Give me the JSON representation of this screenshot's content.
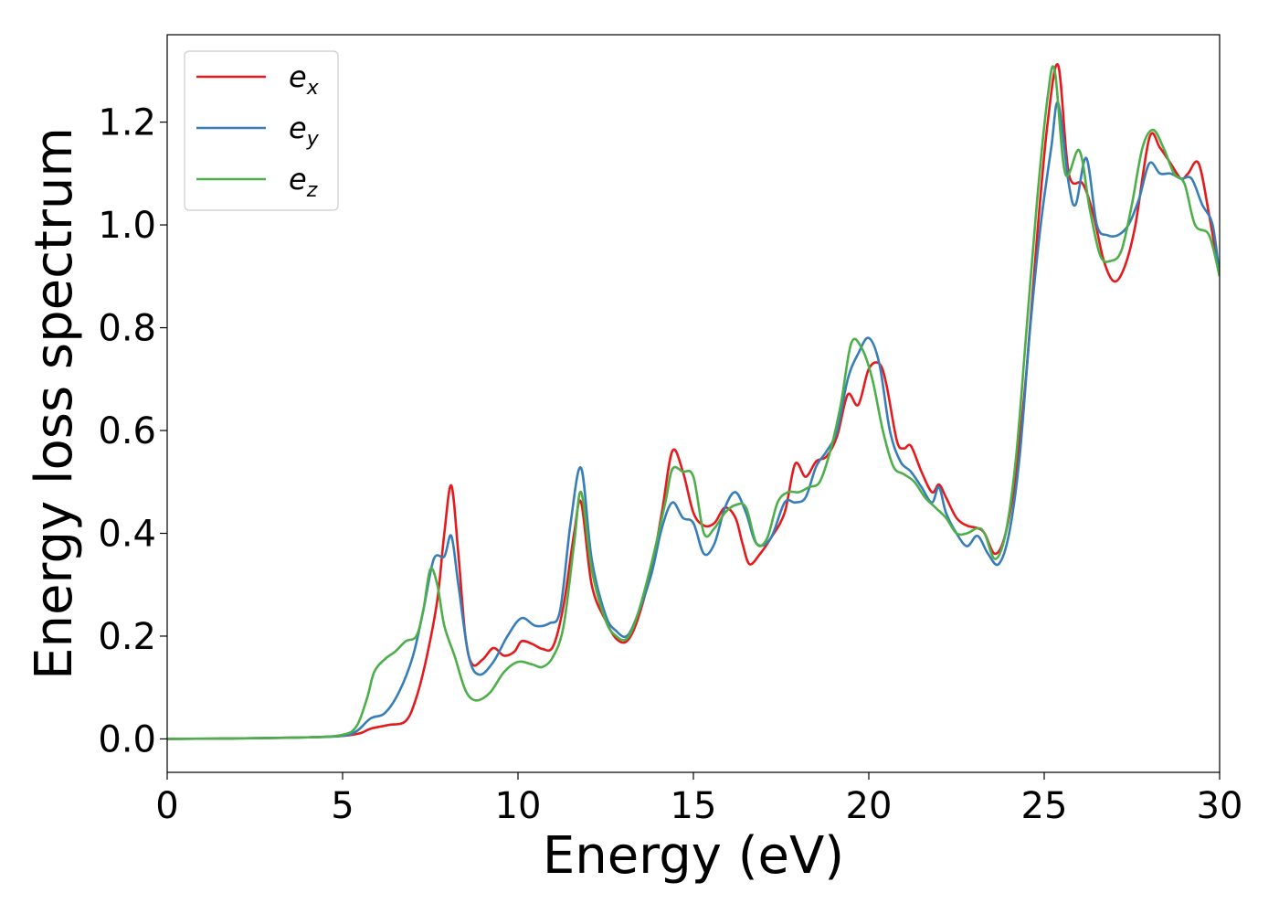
{
  "chart_data": {
    "type": "line",
    "xlabel": "Energy (eV)",
    "ylabel": "Energy loss spectrum",
    "xlim": [
      0,
      30
    ],
    "ylim": [
      -0.065,
      1.37
    ],
    "xticks": [
      0,
      5,
      10,
      15,
      20,
      25,
      30
    ],
    "xtick_labels": [
      "0",
      "5",
      "10",
      "15",
      "20",
      "25",
      "30"
    ],
    "yticks": [
      0.0,
      0.2,
      0.4,
      0.6,
      0.8,
      1.0,
      1.2
    ],
    "ytick_labels": [
      "0.0",
      "0.2",
      "0.4",
      "0.6",
      "0.8",
      "1.0",
      "1.2"
    ],
    "grid": false,
    "legend_position": "top-left",
    "legend": [
      {
        "base": "e",
        "sub": "x"
      },
      {
        "base": "e",
        "sub": "y"
      },
      {
        "base": "e",
        "sub": "z"
      }
    ],
    "series": [
      {
        "name": "e_x",
        "color": "#e41a1c",
        "points": [
          [
            0,
            0
          ],
          [
            2,
            0.001
          ],
          [
            4,
            0.003
          ],
          [
            5,
            0.006
          ],
          [
            5.5,
            0.011
          ],
          [
            5.8,
            0.02
          ],
          [
            6.3,
            0.027
          ],
          [
            6.8,
            0.035
          ],
          [
            7.1,
            0.08
          ],
          [
            7.4,
            0.16
          ],
          [
            7.7,
            0.27
          ],
          [
            7.9,
            0.4
          ],
          [
            8.1,
            0.493
          ],
          [
            8.3,
            0.36
          ],
          [
            8.5,
            0.2
          ],
          [
            8.7,
            0.145
          ],
          [
            9.0,
            0.155
          ],
          [
            9.3,
            0.177
          ],
          [
            9.6,
            0.162
          ],
          [
            9.9,
            0.17
          ],
          [
            10.1,
            0.19
          ],
          [
            10.4,
            0.185
          ],
          [
            10.7,
            0.175
          ],
          [
            11.0,
            0.18
          ],
          [
            11.3,
            0.26
          ],
          [
            11.6,
            0.4
          ],
          [
            11.8,
            0.46
          ],
          [
            12.1,
            0.3
          ],
          [
            12.5,
            0.23
          ],
          [
            12.8,
            0.195
          ],
          [
            13.1,
            0.19
          ],
          [
            13.4,
            0.23
          ],
          [
            13.8,
            0.33
          ],
          [
            14.1,
            0.44
          ],
          [
            14.4,
            0.56
          ],
          [
            14.7,
            0.52
          ],
          [
            15.0,
            0.44
          ],
          [
            15.3,
            0.415
          ],
          [
            15.6,
            0.42
          ],
          [
            15.9,
            0.45
          ],
          [
            16.2,
            0.43
          ],
          [
            16.4,
            0.38
          ],
          [
            16.6,
            0.34
          ],
          [
            16.9,
            0.36
          ],
          [
            17.2,
            0.39
          ],
          [
            17.6,
            0.44
          ],
          [
            17.9,
            0.535
          ],
          [
            18.2,
            0.51
          ],
          [
            18.5,
            0.54
          ],
          [
            18.8,
            0.55
          ],
          [
            19.1,
            0.59
          ],
          [
            19.4,
            0.67
          ],
          [
            19.7,
            0.65
          ],
          [
            20.0,
            0.72
          ],
          [
            20.3,
            0.73
          ],
          [
            20.5,
            0.69
          ],
          [
            20.8,
            0.58
          ],
          [
            21.0,
            0.565
          ],
          [
            21.2,
            0.57
          ],
          [
            21.5,
            0.52
          ],
          [
            21.8,
            0.48
          ],
          [
            22.0,
            0.495
          ],
          [
            22.2,
            0.47
          ],
          [
            22.5,
            0.43
          ],
          [
            22.8,
            0.415
          ],
          [
            23.1,
            0.41
          ],
          [
            23.3,
            0.4
          ],
          [
            23.6,
            0.36
          ],
          [
            23.9,
            0.4
          ],
          [
            24.2,
            0.52
          ],
          [
            24.5,
            0.72
          ],
          [
            24.8,
            0.98
          ],
          [
            25.1,
            1.2
          ],
          [
            25.4,
            1.31
          ],
          [
            25.7,
            1.1
          ],
          [
            26.1,
            1.08
          ],
          [
            26.4,
            1.02
          ],
          [
            26.7,
            0.93
          ],
          [
            27.0,
            0.89
          ],
          [
            27.3,
            0.92
          ],
          [
            27.6,
            1.0
          ],
          [
            28.0,
            1.17
          ],
          [
            28.3,
            1.15
          ],
          [
            28.6,
            1.12
          ],
          [
            28.9,
            1.09
          ],
          [
            29.1,
            1.1
          ],
          [
            29.4,
            1.12
          ],
          [
            29.7,
            1.02
          ],
          [
            30,
            0.9
          ]
        ]
      },
      {
        "name": "e_y",
        "color": "#377eb8",
        "points": [
          [
            0,
            0
          ],
          [
            2,
            0.001
          ],
          [
            4,
            0.003
          ],
          [
            5,
            0.006
          ],
          [
            5.4,
            0.015
          ],
          [
            5.8,
            0.04
          ],
          [
            6.2,
            0.05
          ],
          [
            6.6,
            0.09
          ],
          [
            7.0,
            0.16
          ],
          [
            7.3,
            0.25
          ],
          [
            7.6,
            0.35
          ],
          [
            7.9,
            0.355
          ],
          [
            8.1,
            0.395
          ],
          [
            8.3,
            0.3
          ],
          [
            8.6,
            0.16
          ],
          [
            8.9,
            0.125
          ],
          [
            9.3,
            0.15
          ],
          [
            9.7,
            0.2
          ],
          [
            10.1,
            0.235
          ],
          [
            10.5,
            0.22
          ],
          [
            10.9,
            0.225
          ],
          [
            11.2,
            0.25
          ],
          [
            11.5,
            0.42
          ],
          [
            11.8,
            0.527
          ],
          [
            12.1,
            0.35
          ],
          [
            12.5,
            0.24
          ],
          [
            12.8,
            0.21
          ],
          [
            13.1,
            0.2
          ],
          [
            13.4,
            0.24
          ],
          [
            13.8,
            0.32
          ],
          [
            14.1,
            0.41
          ],
          [
            14.4,
            0.46
          ],
          [
            14.7,
            0.43
          ],
          [
            15.0,
            0.42
          ],
          [
            15.3,
            0.36
          ],
          [
            15.6,
            0.38
          ],
          [
            15.9,
            0.45
          ],
          [
            16.2,
            0.48
          ],
          [
            16.5,
            0.44
          ],
          [
            16.8,
            0.38
          ],
          [
            17.2,
            0.39
          ],
          [
            17.6,
            0.46
          ],
          [
            17.9,
            0.46
          ],
          [
            18.2,
            0.47
          ],
          [
            18.5,
            0.53
          ],
          [
            18.8,
            0.56
          ],
          [
            19.1,
            0.6
          ],
          [
            19.4,
            0.7
          ],
          [
            19.7,
            0.75
          ],
          [
            20.0,
            0.78
          ],
          [
            20.3,
            0.73
          ],
          [
            20.6,
            0.6
          ],
          [
            20.9,
            0.54
          ],
          [
            21.2,
            0.52
          ],
          [
            21.5,
            0.49
          ],
          [
            21.8,
            0.46
          ],
          [
            22.0,
            0.49
          ],
          [
            22.2,
            0.44
          ],
          [
            22.5,
            0.4
          ],
          [
            22.8,
            0.375
          ],
          [
            23.1,
            0.395
          ],
          [
            23.4,
            0.36
          ],
          [
            23.7,
            0.34
          ],
          [
            24.0,
            0.4
          ],
          [
            24.3,
            0.55
          ],
          [
            24.6,
            0.8
          ],
          [
            24.9,
            1.0
          ],
          [
            25.2,
            1.15
          ],
          [
            25.4,
            1.237
          ],
          [
            25.7,
            1.08
          ],
          [
            25.9,
            1.04
          ],
          [
            26.2,
            1.13
          ],
          [
            26.5,
            1.0
          ],
          [
            26.8,
            0.98
          ],
          [
            27.1,
            0.98
          ],
          [
            27.4,
            1.0
          ],
          [
            27.7,
            1.05
          ],
          [
            28.0,
            1.12
          ],
          [
            28.3,
            1.1
          ],
          [
            28.6,
            1.1
          ],
          [
            28.9,
            1.09
          ],
          [
            29.2,
            1.09
          ],
          [
            29.5,
            1.04
          ],
          [
            29.8,
            1.0
          ],
          [
            30,
            0.9
          ]
        ]
      },
      {
        "name": "e_z",
        "color": "#4daf4a",
        "points": [
          [
            0,
            0
          ],
          [
            2,
            0.001
          ],
          [
            4,
            0.003
          ],
          [
            5,
            0.008
          ],
          [
            5.4,
            0.025
          ],
          [
            5.7,
            0.08
          ],
          [
            5.9,
            0.13
          ],
          [
            6.2,
            0.155
          ],
          [
            6.5,
            0.17
          ],
          [
            6.8,
            0.19
          ],
          [
            7.1,
            0.2
          ],
          [
            7.3,
            0.25
          ],
          [
            7.5,
            0.33
          ],
          [
            7.7,
            0.3
          ],
          [
            7.9,
            0.22
          ],
          [
            8.2,
            0.16
          ],
          [
            8.5,
            0.095
          ],
          [
            8.8,
            0.075
          ],
          [
            9.2,
            0.09
          ],
          [
            9.6,
            0.13
          ],
          [
            10.0,
            0.15
          ],
          [
            10.4,
            0.145
          ],
          [
            10.7,
            0.14
          ],
          [
            11.0,
            0.16
          ],
          [
            11.3,
            0.22
          ],
          [
            11.6,
            0.38
          ],
          [
            11.8,
            0.48
          ],
          [
            12.1,
            0.33
          ],
          [
            12.5,
            0.23
          ],
          [
            12.8,
            0.2
          ],
          [
            13.1,
            0.195
          ],
          [
            13.4,
            0.24
          ],
          [
            13.8,
            0.34
          ],
          [
            14.2,
            0.46
          ],
          [
            14.4,
            0.525
          ],
          [
            14.7,
            0.52
          ],
          [
            15.0,
            0.51
          ],
          [
            15.3,
            0.4
          ],
          [
            15.6,
            0.41
          ],
          [
            15.9,
            0.44
          ],
          [
            16.2,
            0.455
          ],
          [
            16.5,
            0.45
          ],
          [
            16.8,
            0.38
          ],
          [
            17.1,
            0.39
          ],
          [
            17.4,
            0.46
          ],
          [
            17.7,
            0.48
          ],
          [
            18.0,
            0.48
          ],
          [
            18.3,
            0.49
          ],
          [
            18.6,
            0.5
          ],
          [
            18.9,
            0.56
          ],
          [
            19.2,
            0.65
          ],
          [
            19.5,
            0.77
          ],
          [
            19.8,
            0.76
          ],
          [
            20.1,
            0.7
          ],
          [
            20.4,
            0.6
          ],
          [
            20.7,
            0.53
          ],
          [
            21.0,
            0.515
          ],
          [
            21.3,
            0.5
          ],
          [
            21.6,
            0.47
          ],
          [
            21.9,
            0.45
          ],
          [
            22.2,
            0.43
          ],
          [
            22.5,
            0.4
          ],
          [
            22.8,
            0.4
          ],
          [
            23.1,
            0.41
          ],
          [
            23.3,
            0.4
          ],
          [
            23.6,
            0.35
          ],
          [
            23.9,
            0.4
          ],
          [
            24.2,
            0.55
          ],
          [
            24.5,
            0.8
          ],
          [
            24.8,
            1.05
          ],
          [
            25.1,
            1.25
          ],
          [
            25.3,
            1.3
          ],
          [
            25.6,
            1.1
          ],
          [
            26.0,
            1.145
          ],
          [
            26.3,
            1.03
          ],
          [
            26.6,
            0.94
          ],
          [
            26.9,
            0.93
          ],
          [
            27.2,
            0.95
          ],
          [
            27.5,
            1.04
          ],
          [
            27.8,
            1.15
          ],
          [
            28.1,
            1.185
          ],
          [
            28.4,
            1.15
          ],
          [
            28.7,
            1.1
          ],
          [
            29.0,
            1.08
          ],
          [
            29.3,
            1.0
          ],
          [
            29.7,
            0.98
          ],
          [
            30,
            0.9
          ]
        ]
      }
    ]
  }
}
